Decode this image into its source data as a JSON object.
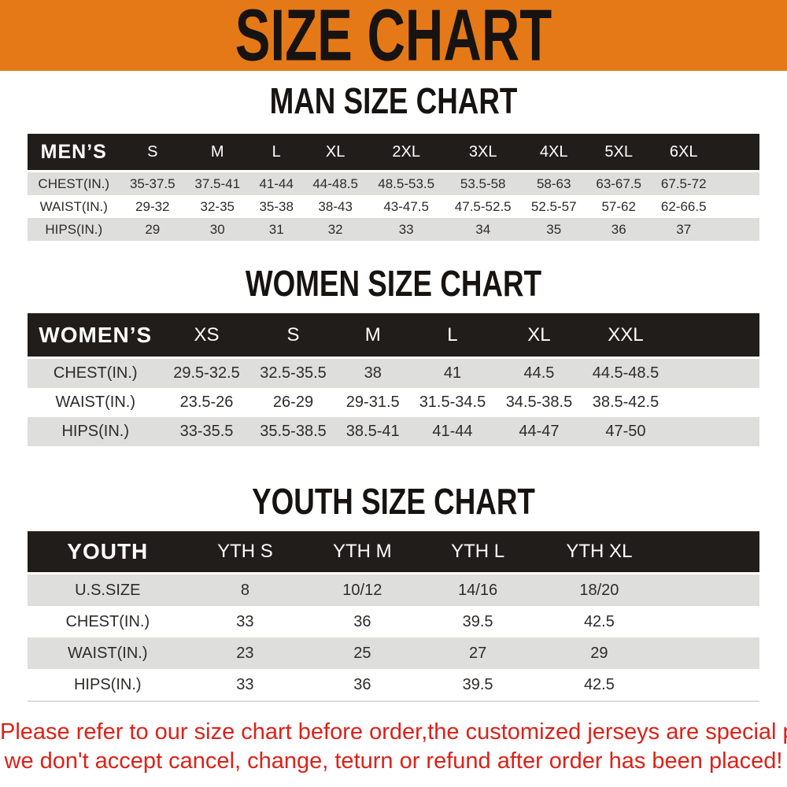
{
  "banner": {
    "title": "SIZE CHART"
  },
  "sections": [
    {
      "key": "men",
      "heading": "MAN SIZE CHART",
      "header_label": "MEN’S",
      "columns": [
        "S",
        "M",
        "L",
        "XL",
        "2XL",
        "3XL",
        "4XL",
        "5XL",
        "6XL"
      ],
      "rows": [
        {
          "label": "CHEST(IN.)",
          "values": [
            "35-37.5",
            "37.5-41",
            "41-44",
            "44-48.5",
            "48.5-53.5",
            "53.5-58",
            "58-63",
            "63-67.5",
            "67.5-72"
          ]
        },
        {
          "label": "WAIST(IN.)",
          "values": [
            "29-32",
            "32-35",
            "35-38",
            "38-43",
            "43-47.5",
            "47.5-52.5",
            "52.5-57",
            "57-62",
            "62-66.5"
          ]
        },
        {
          "label": "HIPS(IN.)",
          "values": [
            "29",
            "30",
            "31",
            "32",
            "33",
            "34",
            "35",
            "36",
            "37"
          ]
        }
      ]
    },
    {
      "key": "women",
      "heading": "WOMEN SIZE CHART",
      "header_label": "WOMEN’S",
      "columns": [
        "XS",
        "S",
        "M",
        "L",
        "XL",
        "XXL"
      ],
      "rows": [
        {
          "label": "CHEST(IN.)",
          "values": [
            "29.5-32.5",
            "32.5-35.5",
            "38",
            "41",
            "44.5",
            "44.5-48.5"
          ]
        },
        {
          "label": "WAIST(IN.)",
          "values": [
            "23.5-26",
            "26-29",
            "29-31.5",
            "31.5-34.5",
            "34.5-38.5",
            "38.5-42.5"
          ]
        },
        {
          "label": "HIPS(IN.)",
          "values": [
            "33-35.5",
            "35.5-38.5",
            "38.5-41",
            "41-44",
            "44-47",
            "47-50"
          ]
        }
      ]
    },
    {
      "key": "youth",
      "heading": "YOUTH SIZE CHART",
      "header_label": "YOUTH",
      "columns": [
        "YTH S",
        "YTH M",
        "YTH L",
        "YTH XL"
      ],
      "rows": [
        {
          "label": "U.S.SIZE",
          "values": [
            "8",
            "10/12",
            "14/16",
            "18/20"
          ]
        },
        {
          "label": "CHEST(IN.)",
          "values": [
            "33",
            "36",
            "39.5",
            "42.5"
          ]
        },
        {
          "label": "WAIST(IN.)",
          "values": [
            "23",
            "25",
            "27",
            "29"
          ]
        },
        {
          "label": "HIPS(IN.)",
          "values": [
            "33",
            "36",
            "39.5",
            "42.5"
          ]
        }
      ]
    }
  ],
  "footer": {
    "line1": "Please refer to our size chart before order,the customized jerseys are special products,",
    "line2": "we don't accept cancel, change, teturn or refund after order has been placed!"
  },
  "colors": {
    "banner_bg": "#E57917",
    "table_header_bg": "#211D1B",
    "row_stripe": "#DEDEDC",
    "notice_red": "#DD2118",
    "heading_black": "#161310"
  }
}
